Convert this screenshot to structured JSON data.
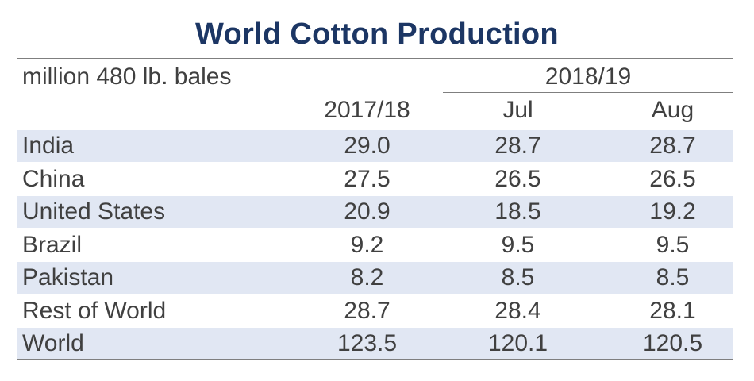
{
  "chart_data": {
    "type": "table",
    "title": "World Cotton Production",
    "unit_label": "million 480 lb. bales",
    "group_header": "2018/19",
    "columns": [
      "2017/18",
      "Jul",
      "Aug"
    ],
    "rows": [
      {
        "name": "India",
        "values": [
          "29.0",
          "28.7",
          "28.7"
        ]
      },
      {
        "name": "China",
        "values": [
          "27.5",
          "26.5",
          "26.5"
        ]
      },
      {
        "name": "United States",
        "values": [
          "20.9",
          "18.5",
          "19.2"
        ]
      },
      {
        "name": "Brazil",
        "values": [
          "9.2",
          "9.5",
          "9.5"
        ]
      },
      {
        "name": "Pakistan",
        "values": [
          "8.2",
          "8.5",
          "8.5"
        ]
      },
      {
        "name": "Rest of World",
        "values": [
          "28.7",
          "28.4",
          "28.1"
        ]
      },
      {
        "name": "World",
        "values": [
          "123.5",
          "120.1",
          "120.5"
        ]
      }
    ]
  },
  "colors": {
    "title": "#1c3664",
    "row_shade": "#e1e7f3",
    "text": "#404040",
    "rule": "#7f7f7f"
  }
}
